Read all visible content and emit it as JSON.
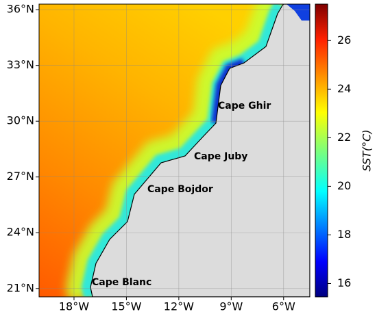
{
  "map": {
    "xlim": [
      -20,
      -4.5
    ],
    "ylim": [
      20.55,
      36.3
    ],
    "xticks": [
      {
        "value": -18,
        "label": "18°W"
      },
      {
        "value": -15,
        "label": "15°W"
      },
      {
        "value": -12,
        "label": "12°W"
      },
      {
        "value": -9,
        "label": "9°W"
      },
      {
        "value": -6,
        "label": "6°W"
      }
    ],
    "yticks": [
      {
        "value": 21,
        "label": "21°N"
      },
      {
        "value": 24,
        "label": "24°N"
      },
      {
        "value": 27,
        "label": "27°N"
      },
      {
        "value": 30,
        "label": "30°N"
      },
      {
        "value": 33,
        "label": "33°N"
      },
      {
        "value": 36,
        "label": "36°N"
      }
    ],
    "grid": true,
    "places": [
      "Cape Ghir",
      "Cape Juby",
      "Cape Bojdor",
      "Cape Blanc"
    ],
    "colorbar": {
      "label": "SST(°C)",
      "lim": [
        15.45,
        27.5
      ],
      "ticks": [
        16,
        18,
        20,
        22,
        24,
        26
      ]
    }
  }
}
